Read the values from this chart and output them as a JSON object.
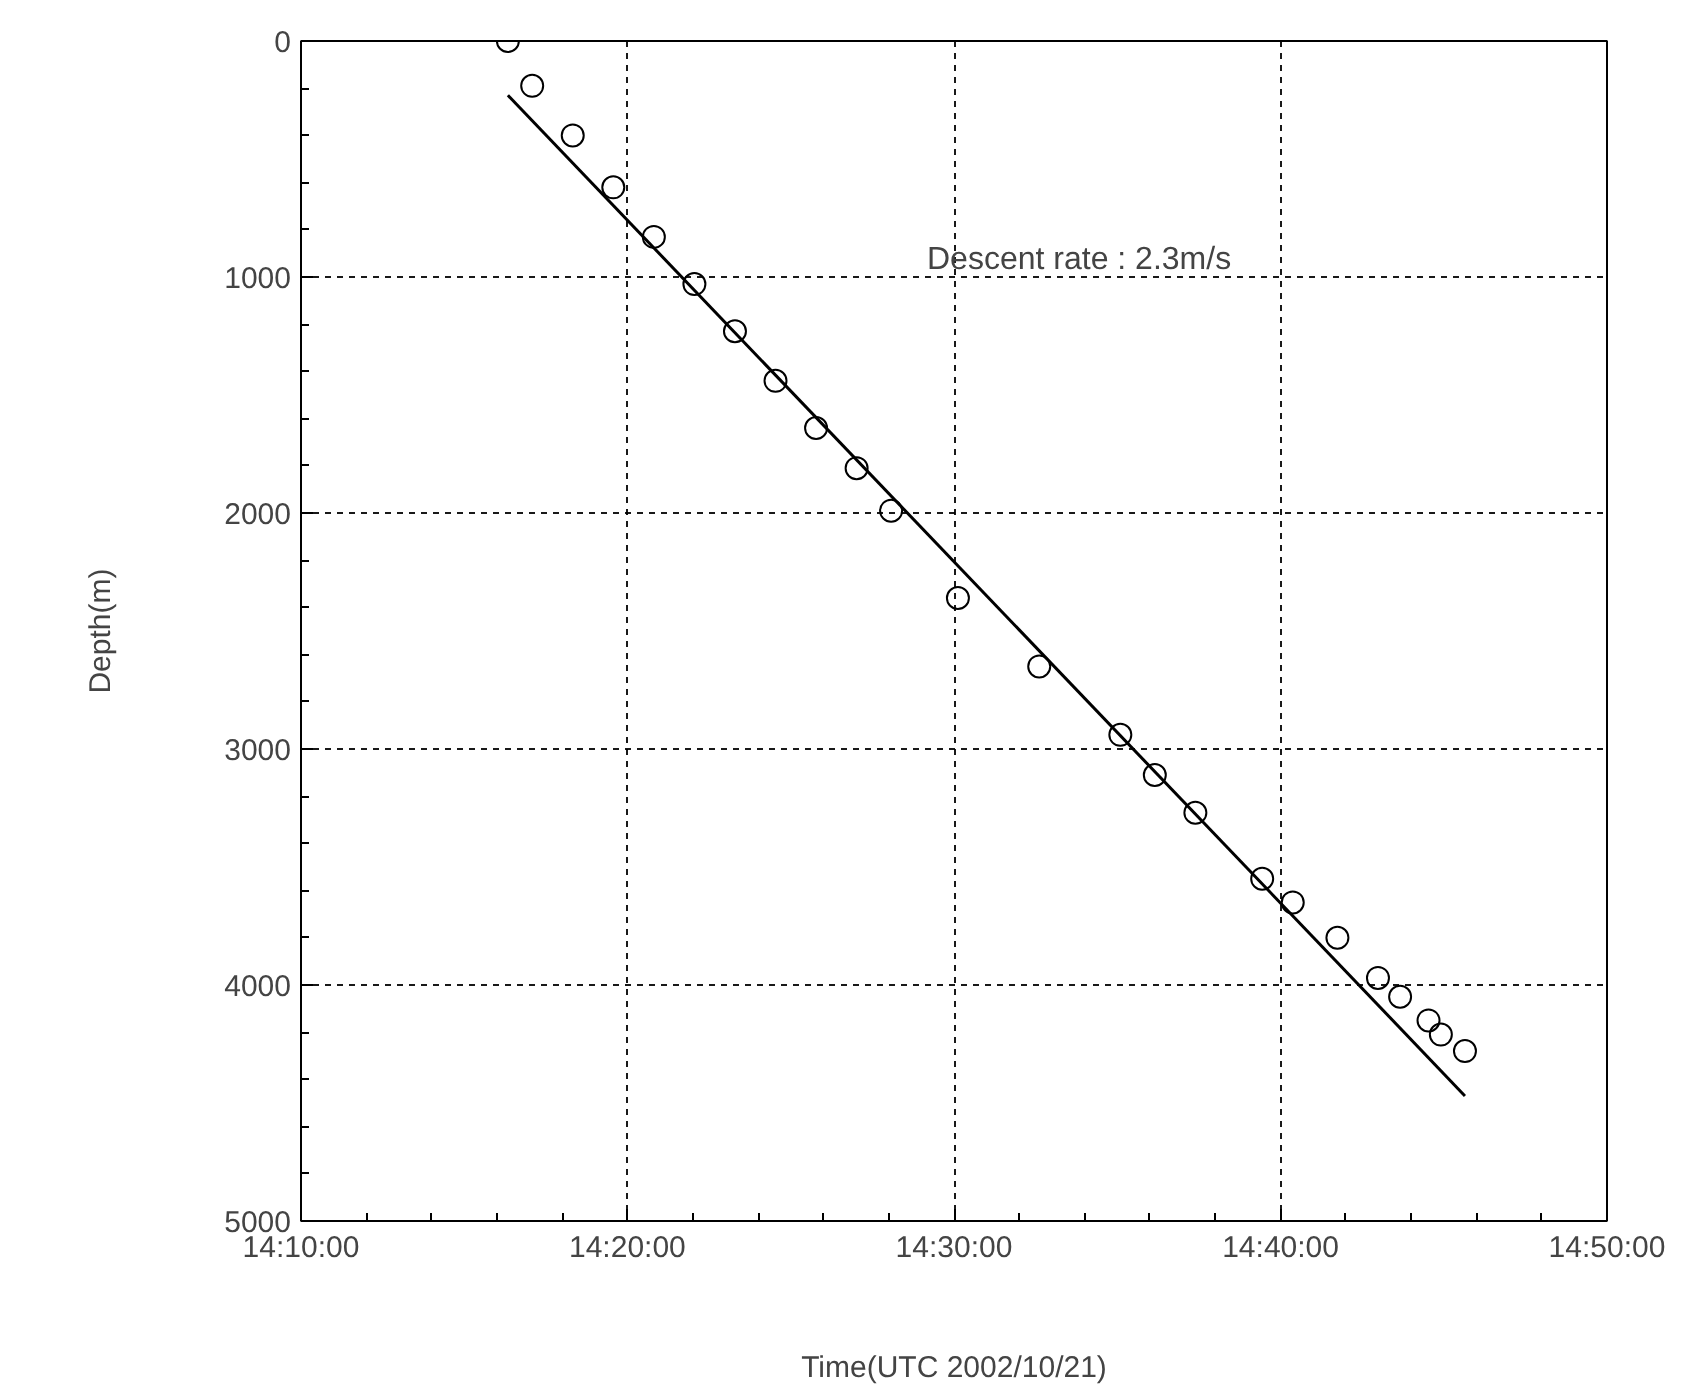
{
  "chart_data": {
    "type": "scatter",
    "xlabel": "Time(UTC 2002/10/21)",
    "ylabel": "Depth(m)",
    "annotations": [
      "Descent rate : 2.3m/s"
    ],
    "xlim": [
      14.1667,
      14.8333
    ],
    "xticks": [
      {
        "value": 14.1667,
        "label": "14:10:00"
      },
      {
        "value": 14.3333,
        "label": "14:20:00"
      },
      {
        "value": 14.5,
        "label": "14:30:00"
      },
      {
        "value": 14.6667,
        "label": "14:40:00"
      },
      {
        "value": 14.8333,
        "label": "14:50:00"
      }
    ],
    "ylim": [
      5000,
      0
    ],
    "yticks": [
      0,
      1000,
      2000,
      3000,
      4000,
      5000
    ],
    "grid": true,
    "series": [
      {
        "color": "#000000",
        "marker": "circle",
        "x": [
          14.2723,
          14.2847,
          14.3054,
          14.3261,
          14.3468,
          14.3675,
          14.3882,
          14.4089,
          14.4296,
          14.4503,
          14.4679,
          14.502,
          14.5435,
          14.5849,
          14.6025,
          14.6232,
          14.6573,
          14.6729,
          14.6957,
          14.7164,
          14.7277,
          14.7422,
          14.7485,
          14.7608
        ],
        "values": [
          0,
          190,
          400,
          620,
          830,
          1030,
          1230,
          1440,
          1640,
          1810,
          1990,
          2360,
          2650,
          2940,
          3110,
          3270,
          3550,
          3650,
          3800,
          3970,
          4050,
          4150,
          4210,
          4280
        ]
      },
      {
        "type": "line",
        "color": "#000000",
        "line_style": "solid",
        "x": [
          14.2723,
          14.7608
        ],
        "values": [
          230,
          4470
        ]
      }
    ]
  }
}
